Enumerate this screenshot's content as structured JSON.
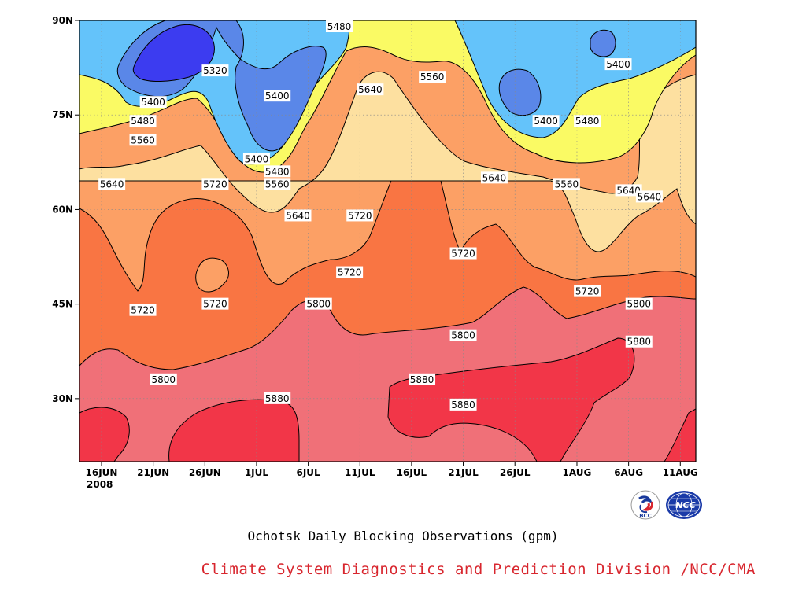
{
  "title": "Ochotsk Daily Blocking Observations (gpm)",
  "credit": "Climate System Diagnostics and Prediction Division /NCC/CMA",
  "logos": {
    "bcc": "BCC",
    "ncc": "NCC"
  },
  "chart_data": {
    "type": "heatmap",
    "x_ticks": [
      "16JUN",
      "21JUN",
      "26JUN",
      "1JUL",
      "6JUL",
      "11JUL",
      "16JUL",
      "21JUL",
      "26JUL",
      "1AUG",
      "6AUG",
      "11AUG"
    ],
    "x_year": "2008",
    "y_ticks": [
      "30N",
      "45N",
      "60N",
      "75N",
      "90N"
    ],
    "ylim": [
      20,
      90
    ],
    "grid": "dotted",
    "levels": [
      5320,
      5400,
      5480,
      5560,
      5640,
      5720,
      5800,
      5880
    ],
    "level_colors": {
      "below_5320": "#3c3cf0",
      "5320_5400": "#5a87e8",
      "5400_5480": "#64c3fa",
      "5480_5560": "#fafa64",
      "5560_5640": "#fde0a0",
      "5640_5720": "#fca065",
      "5720_5800": "#f97543",
      "5800_5880": "#f07078",
      "above_5880": "#f23648"
    },
    "contour_labels": [
      {
        "value": "5480",
        "date": "9JUL",
        "lat": 89
      },
      {
        "value": "5320",
        "date": "27JUN",
        "lat": 82
      },
      {
        "value": "5400",
        "date": "21JUN",
        "lat": 77
      },
      {
        "value": "5400",
        "date": "3JUL",
        "lat": 78
      },
      {
        "value": "5480",
        "date": "20JUN",
        "lat": 74
      },
      {
        "value": "5560",
        "date": "20JUN",
        "lat": 71
      },
      {
        "value": "5640",
        "date": "17JUN",
        "lat": 64
      },
      {
        "value": "5400",
        "date": "1JUL",
        "lat": 68
      },
      {
        "value": "5480",
        "date": "3JUL",
        "lat": 66
      },
      {
        "value": "5560",
        "date": "3JUL",
        "lat": 64
      },
      {
        "value": "5640",
        "date": "5JUL",
        "lat": 59
      },
      {
        "value": "5720",
        "date": "27JUN",
        "lat": 64
      },
      {
        "value": "5640",
        "date": "12JUL",
        "lat": 79
      },
      {
        "value": "5560",
        "date": "18JUL",
        "lat": 81
      },
      {
        "value": "5400",
        "date": "29JUL",
        "lat": 74
      },
      {
        "value": "5480",
        "date": "2AUG",
        "lat": 74
      },
      {
        "value": "5400",
        "date": "5AUG",
        "lat": 83
      },
      {
        "value": "5640",
        "date": "24JUL",
        "lat": 65
      },
      {
        "value": "5560",
        "date": "31JUL",
        "lat": 64
      },
      {
        "value": "5640",
        "date": "6AUG",
        "lat": 63
      },
      {
        "value": "5640",
        "date": "8AUG",
        "lat": 62
      },
      {
        "value": "5720",
        "date": "11JUL",
        "lat": 59
      },
      {
        "value": "5720",
        "date": "10JUL",
        "lat": 50
      },
      {
        "value": "5720",
        "date": "20JUN",
        "lat": 44
      },
      {
        "value": "5720",
        "date": "27JUN",
        "lat": 45
      },
      {
        "value": "5800",
        "date": "7JUL",
        "lat": 45
      },
      {
        "value": "5720",
        "date": "21JUL",
        "lat": 53
      },
      {
        "value": "5720",
        "date": "2AUG",
        "lat": 47
      },
      {
        "value": "5800",
        "date": "7AUG",
        "lat": 45
      },
      {
        "value": "5800",
        "date": "21JUL",
        "lat": 40
      },
      {
        "value": "5880",
        "date": "7AUG",
        "lat": 39
      },
      {
        "value": "5800",
        "date": "22JUN",
        "lat": 33
      },
      {
        "value": "5880",
        "date": "3JUL",
        "lat": 30
      },
      {
        "value": "5880",
        "date": "17JUL",
        "lat": 33
      },
      {
        "value": "5880",
        "date": "21JUL",
        "lat": 29
      }
    ]
  }
}
